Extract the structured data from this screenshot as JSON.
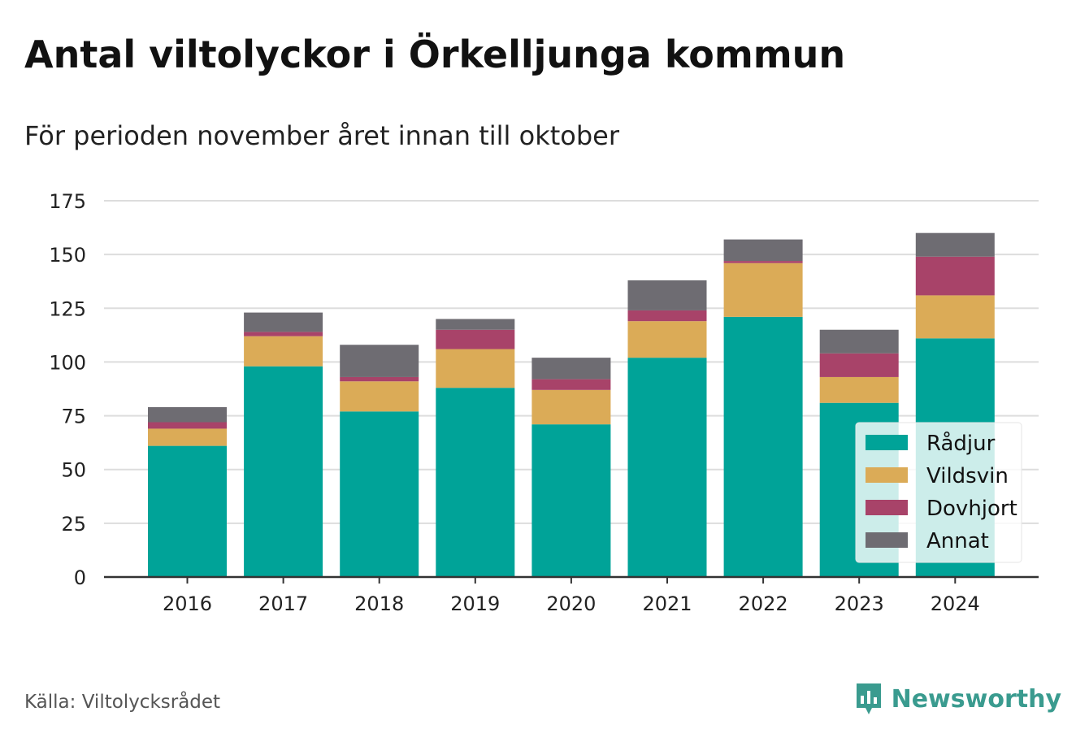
{
  "title": "Antal viltolyckor i Örkelljunga kommun",
  "subtitle": "För perioden november året innan till oktober",
  "source": "Källa: Viltolycksrådet",
  "brand": {
    "name": "Newsworthy",
    "icon": "newsworthy-logo-icon",
    "color": "#3a9b8f"
  },
  "chart_data": {
    "type": "bar",
    "stacked": true,
    "categories": [
      "2016",
      "2017",
      "2018",
      "2019",
      "2020",
      "2021",
      "2022",
      "2023",
      "2024"
    ],
    "series": [
      {
        "name": "Rådjur",
        "color": "#00a398",
        "values": [
          61,
          98,
          77,
          88,
          71,
          102,
          121,
          81,
          111
        ]
      },
      {
        "name": "Vildsvin",
        "color": "#dbab57",
        "values": [
          8,
          14,
          14,
          18,
          16,
          17,
          25,
          12,
          20
        ]
      },
      {
        "name": "Dovhjort",
        "color": "#a84369",
        "values": [
          3,
          2,
          2,
          9,
          5,
          5,
          1,
          11,
          18
        ]
      },
      {
        "name": "Annat",
        "color": "#6e6c72",
        "values": [
          7,
          9,
          15,
          5,
          10,
          14,
          10,
          11,
          11
        ]
      }
    ],
    "ylim": [
      0,
      175
    ],
    "yticks": [
      0,
      25,
      50,
      75,
      100,
      125,
      150,
      175
    ],
    "grid": true,
    "legend_position": "bottom-right"
  }
}
